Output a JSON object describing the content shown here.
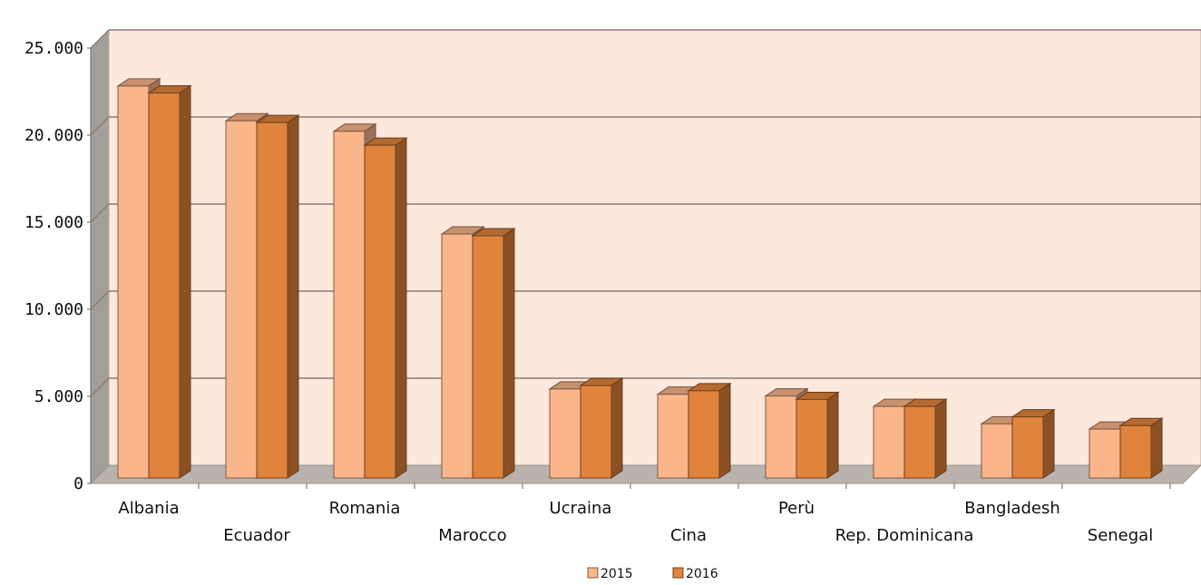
{
  "chart_data": {
    "type": "bar",
    "title": "",
    "xlabel": "",
    "ylabel": "",
    "ylim": [
      0,
      25000
    ],
    "yticks": [
      0,
      5000,
      10000,
      15000,
      20000,
      25000
    ],
    "ytick_labels": [
      "0",
      "5.000",
      "10.000",
      "15.000",
      "20.000",
      "25.000"
    ],
    "grid": true,
    "legend_position": "bottom-center",
    "categories": [
      "Albania",
      "Ecuador",
      "Romania",
      "Marocco",
      "Ucraina",
      "Cina",
      "Perù",
      "Rep. Dominicana",
      "Bangladesh",
      "Senegal"
    ],
    "series": [
      {
        "name": "2015",
        "values": [
          22300,
          20300,
          19700,
          13800,
          4900,
          4600,
          4500,
          3900,
          2900,
          2600
        ]
      },
      {
        "name": "2016",
        "values": [
          21900,
          20200,
          18900,
          13700,
          5100,
          4800,
          4300,
          3900,
          3300,
          2800
        ]
      }
    ],
    "colors": {
      "series_2015": "#fbb58b",
      "series_2016": "#e0833c",
      "wall": "#fde8dc",
      "floor": "#b9b2ad",
      "side_wall": "#a29f9b",
      "gridline": "#8c7b72"
    }
  }
}
